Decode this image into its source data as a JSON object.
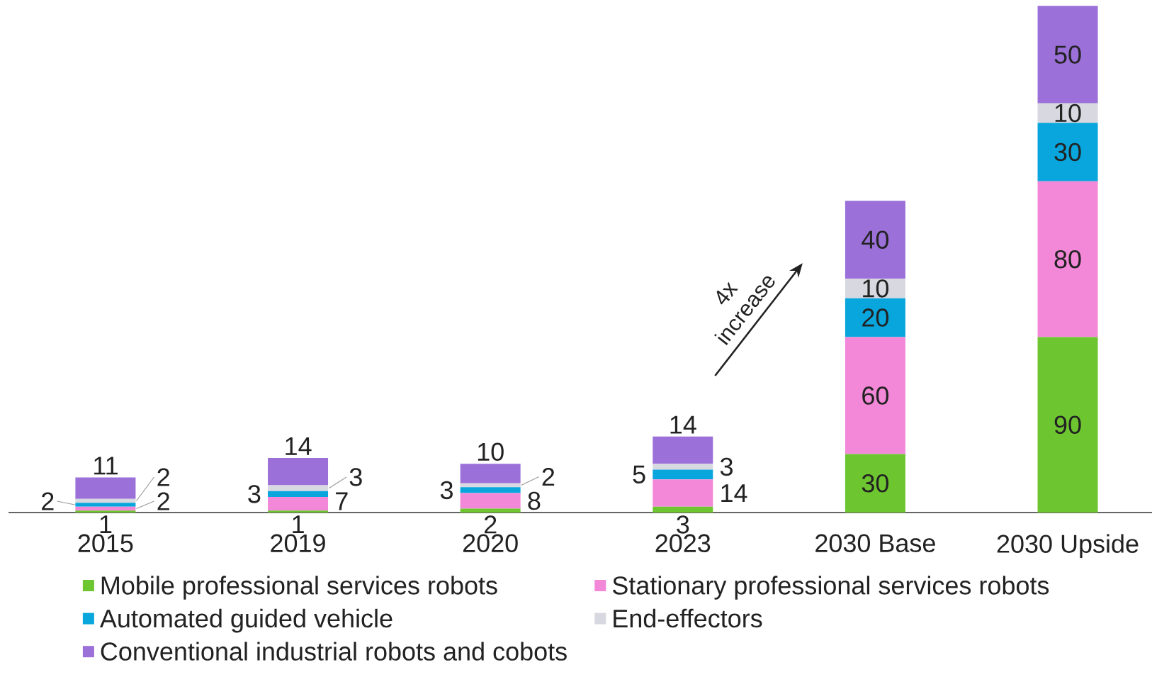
{
  "chart_data": {
    "type": "bar",
    "stacked": true,
    "categories": [
      "2015",
      "2019",
      "2020",
      "2023",
      "2030 Base",
      "2030 Upside"
    ],
    "series": [
      {
        "name": "Mobile professional services robots",
        "color": "#6dc530",
        "values": [
          1,
          1,
          2,
          3,
          30,
          90
        ]
      },
      {
        "name": "Stationary professional services robots",
        "color": "#f388d8",
        "values": [
          2,
          7,
          8,
          14,
          60,
          80
        ]
      },
      {
        "name": "Automated guided vehicle",
        "color": "#08a6dd",
        "values": [
          2,
          3,
          3,
          5,
          20,
          30
        ]
      },
      {
        "name": "End-effectors",
        "color": "#d8d8e0",
        "values": [
          2,
          3,
          2,
          3,
          10,
          10
        ]
      },
      {
        "name": "Conventional industrial robots and cobots",
        "color": "#9b70d8",
        "values": [
          11,
          14,
          10,
          14,
          40,
          50
        ]
      }
    ],
    "data_labels": true,
    "legend": "bottom",
    "annotations": [
      "4x increase"
    ]
  }
}
